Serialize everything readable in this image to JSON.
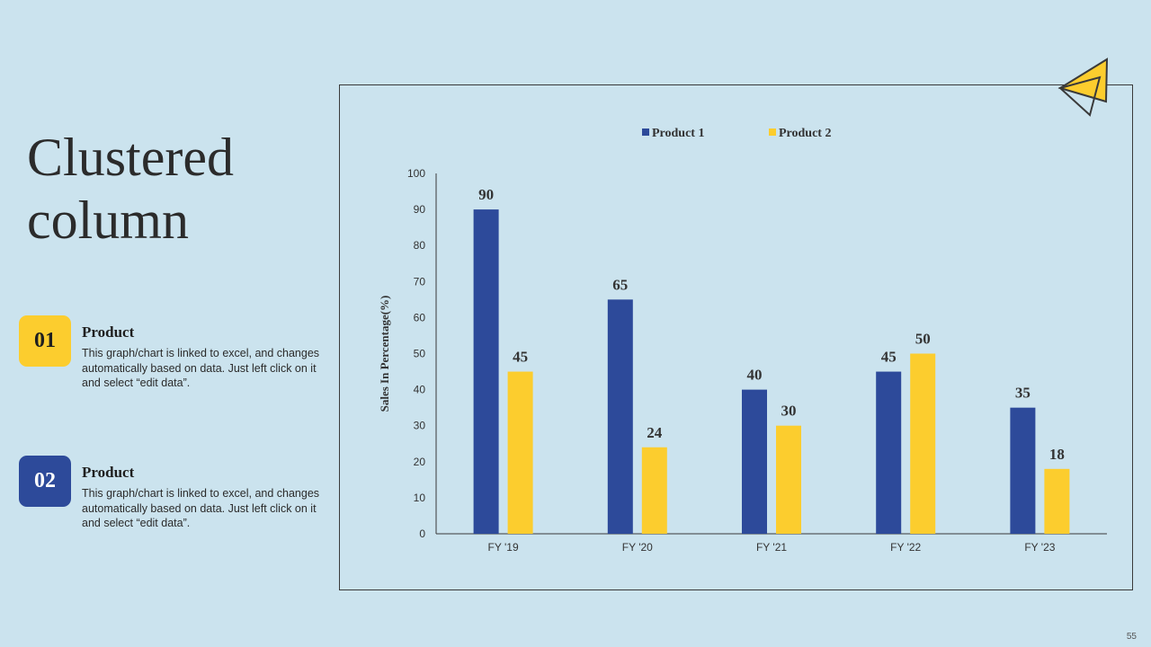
{
  "slide": {
    "title_line1": "Clustered",
    "title_line2": "column",
    "page_number": "55"
  },
  "items": [
    {
      "number": "01",
      "title": "Product",
      "description": "This graph/chart is linked to excel, and changes automatically based on data. Just left click on it and select “edit data”.",
      "color": "#fccd2e"
    },
    {
      "number": "02",
      "title": "Product",
      "description": "This graph/chart is linked to excel, and changes automatically based on data. Just left click on it and select “edit data”.",
      "color": "#2d4a9a"
    }
  ],
  "colors": {
    "series1": "#2d4a9a",
    "series2": "#fccd2e",
    "background": "#cbe3ee"
  },
  "chart_data": {
    "type": "bar",
    "categories": [
      "FY '19",
      "FY '20",
      "FY '21",
      "FY '22",
      "FY '23"
    ],
    "series": [
      {
        "name": "Product 1",
        "values": [
          90,
          65,
          40,
          45,
          35
        ]
      },
      {
        "name": "Product  2",
        "values": [
          45,
          24,
          30,
          50,
          18
        ]
      }
    ],
    "ylabel": "Sales In Percentage(%)",
    "xlabel": "",
    "ylim": [
      0,
      100
    ],
    "yticks": [
      0,
      10,
      20,
      30,
      40,
      50,
      60,
      70,
      80,
      90,
      100
    ],
    "legend": "top-center",
    "grid": false
  }
}
